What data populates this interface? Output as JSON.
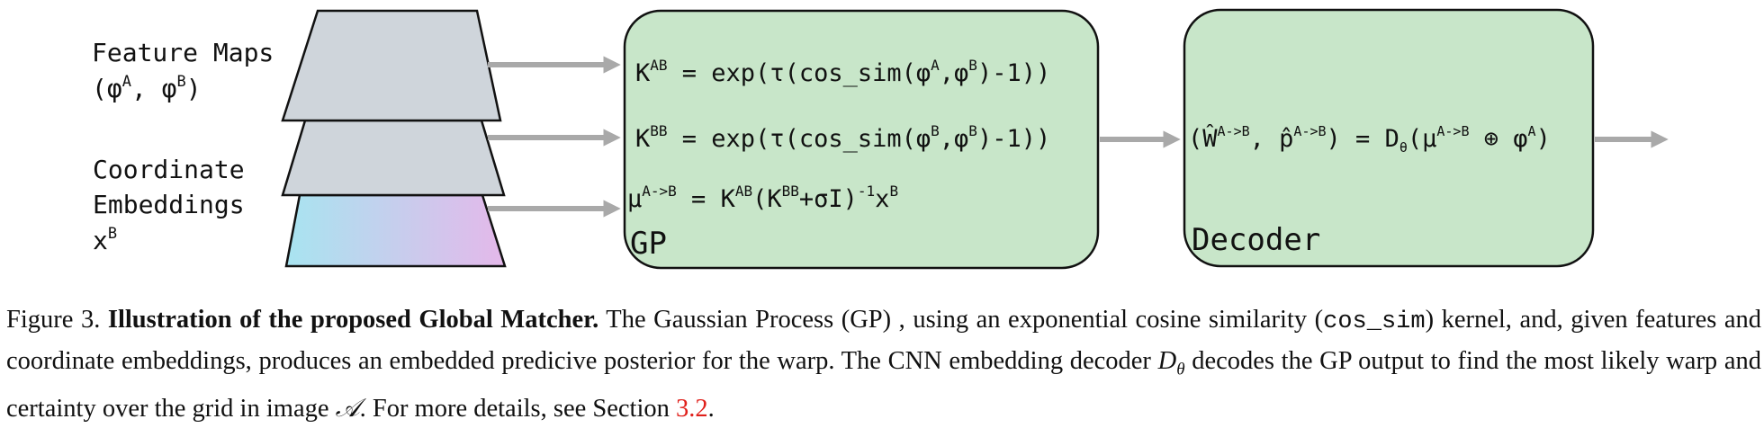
{
  "labels": {
    "feature_maps_line1": "Feature Maps",
    "feature_maps_line2": "(φ",
    "feature_maps_sup_a": "A",
    "feature_maps_mid": ",  φ",
    "feature_maps_sup_b": "B",
    "feature_maps_end": ")",
    "coord_line1": "Coordinate",
    "coord_line2": "Embeddings",
    "coord_line3": "x",
    "coord_sup": "B"
  },
  "gp_box": {
    "title": "GP",
    "eq1": {
      "a": "K",
      "a_sup": "AB",
      "b": " = exp(τ(cos_sim(φ",
      "b_sup": "A",
      "c": ",φ",
      "c_sup": "B",
      "d": ")-1))"
    },
    "eq2": {
      "a": "K",
      "a_sup": "BB",
      "b": " = exp(τ(cos_sim(φ",
      "b_sup": "B",
      "c": ",φ",
      "c_sup": "B",
      "d": ")-1))"
    },
    "eq3": {
      "a": "μ",
      "a_sup": "A->B",
      "b": " = K",
      "b_sup": "AB",
      "c": "(K",
      "c_sup": "BB",
      "d": "+σI)",
      "d_sup": "-1",
      "e": "x",
      "e_sup": "B"
    }
  },
  "decoder_box": {
    "title": "Decoder",
    "eq": {
      "a": "(Ŵ",
      "a_sup": "A->B",
      "b": ",  p̂",
      "b_sup": "A->B",
      "c": ") = D",
      "c_sub": "θ",
      "d": "(μ",
      "d_sup": "A->B",
      "e": " ⊕ φ",
      "e_sup": "A",
      "f": ")"
    }
  },
  "caption": {
    "prefix": "Figure 3.",
    "title": "Illustration of the proposed Global Matcher.",
    "text1": "The Gaussian Process (GP) , using an exponential cosine similarity (",
    "code": "cos_sim",
    "text2": ") kernel, and, given features and coordinate embeddings, produces an embedded predicive posterior for the warp.  The CNN embedding decoder ",
    "math_d": "D",
    "math_theta": "θ",
    "text3": " decodes the GP output to find the most likely warp and certainty over the grid in image ",
    "math_a": "𝒜",
    "text4": ". For more details, see Section ",
    "ref": "3.2",
    "text5": "."
  },
  "colors": {
    "box_fill": "#c8e6c9",
    "trap_fill": "#cfd5db",
    "arrow": "#a9a9a9",
    "gradient_start": "#a8e4f0",
    "gradient_end": "#e4b8ea",
    "ref": "#e0201b"
  }
}
